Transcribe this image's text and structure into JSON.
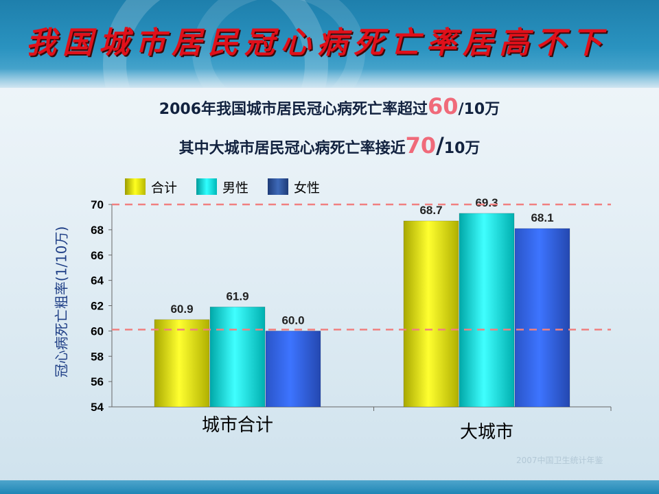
{
  "title": "我国城市居民冠心病死亡率居高不下",
  "subtitle1": {
    "prefix": "2006年我国城市居民冠心病死亡率超过",
    "highlight": "60",
    "suffix": "/10万"
  },
  "subtitle2": {
    "prefix": "其中大城市居民冠心病死亡率接近",
    "highlight": "70",
    "slash": "/",
    "suffix": "10万"
  },
  "watermark": "2007中国卫生统计年鉴",
  "colors": {
    "title": "#e0101a",
    "highlight": "#f06a7a",
    "reference_line": "#f08080",
    "total": "#e6e600",
    "male": "#00e5e5",
    "female": "#2f5fb0"
  },
  "chart_data": {
    "type": "bar",
    "categories": [
      "城市合计",
      "大城市"
    ],
    "series": [
      {
        "name": "合计",
        "values": [
          60.9,
          68.7
        ]
      },
      {
        "name": "男性",
        "values": [
          61.9,
          69.3
        ]
      },
      {
        "name": "女性",
        "values": [
          60.0,
          68.1
        ]
      }
    ],
    "ylabel": "冠心病死亡粗率(1/10万)",
    "ylim": [
      54,
      70
    ],
    "yticks": [
      54,
      56,
      58,
      60,
      62,
      64,
      66,
      68,
      70
    ],
    "reference_lines": [
      60,
      70
    ],
    "data_labels": [
      [
        "60.9",
        "61.9",
        "60.0"
      ],
      [
        "68.7",
        "69.3",
        "68.1"
      ]
    ],
    "legend_position": "top-left",
    "grid": false
  }
}
